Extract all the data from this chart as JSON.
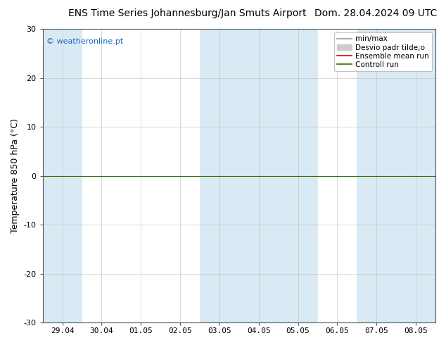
{
  "title_left": "ENS Time Series Johannesburg/Jan Smuts Airport",
  "title_right": "Dom. 28.04.2024 09 UTC",
  "ylabel": "Temperature 850 hPa (°C)",
  "watermark": "© weatheronline.pt",
  "watermark_color": "#1a6abf",
  "ylim": [
    -30,
    30
  ],
  "yticks": [
    -30,
    -20,
    -10,
    0,
    10,
    20,
    30
  ],
  "xtick_labels": [
    "29.04",
    "30.04",
    "01.05",
    "02.05",
    "03.05",
    "04.05",
    "05.05",
    "06.05",
    "07.05",
    "08.05"
  ],
  "n_xticks": 10,
  "shaded_bands": [
    0,
    4,
    5,
    6,
    8,
    9
  ],
  "band_color": "#daeaf5",
  "hline_y": 0,
  "hline_color": "#2e6b00",
  "legend_entries": [
    {
      "label": "min/max",
      "color": "#999999",
      "lw": 1.2,
      "ls": "-"
    },
    {
      "label": "Desvio padr tilde;o",
      "color": "#cccccc",
      "lw": 5,
      "ls": "-"
    },
    {
      "label": "Ensemble mean run",
      "color": "#dd0000",
      "lw": 1.2,
      "ls": "-"
    },
    {
      "label": "Controll run",
      "color": "#2e6b00",
      "lw": 1.2,
      "ls": "-"
    }
  ],
  "bg_color": "#ffffff",
  "plot_bg_color": "#ffffff",
  "title_fontsize": 10,
  "axis_label_fontsize": 9,
  "tick_fontsize": 8,
  "legend_fontsize": 7.5
}
